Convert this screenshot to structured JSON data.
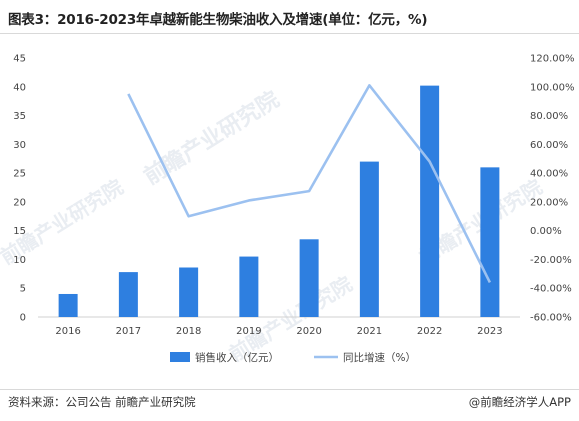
{
  "header": {
    "title": "图表3：2016-2023年卓越新能生物柴油收入及增速(单位：亿元，%)"
  },
  "watermarks": [
    "前瞻产业研究院",
    "前瞻产业研究院",
    "前瞻产业研究院",
    "前瞻产业研究院"
  ],
  "footer": {
    "source": "资料来源：公司公告 前瞻产业研究院",
    "brand": "@前瞻经济学人APP"
  },
  "colors": {
    "bar": "#2e7fe0",
    "line": "#9cc1f0"
  },
  "chart_data": {
    "type": "bar",
    "categories": [
      "2016",
      "2017",
      "2018",
      "2019",
      "2020",
      "2021",
      "2022",
      "2023"
    ],
    "series": [
      {
        "name": "销售收入（亿元）",
        "type": "bar",
        "axis": "left",
        "values": [
          4.0,
          7.8,
          8.6,
          10.5,
          13.5,
          27.0,
          40.2,
          26.0
        ]
      },
      {
        "name": "同比增速（%）",
        "type": "line",
        "axis": "right",
        "values": [
          null,
          95.0,
          10.0,
          21.0,
          27.5,
          101.0,
          48.0,
          -36.0
        ]
      }
    ],
    "y_left": {
      "ylim": [
        0,
        45
      ],
      "ticks": [
        "0",
        "5",
        "10",
        "15",
        "20",
        "25",
        "30",
        "35",
        "40",
        "45"
      ]
    },
    "y_right": {
      "ylim": [
        -60,
        120
      ],
      "ticks": [
        "-60.00%",
        "-40.00%",
        "-20.00%",
        "0.00%",
        "20.00%",
        "40.00%",
        "60.00%",
        "80.00%",
        "100.00%",
        "120.00%"
      ]
    },
    "grid": false,
    "legend": "bottom"
  }
}
